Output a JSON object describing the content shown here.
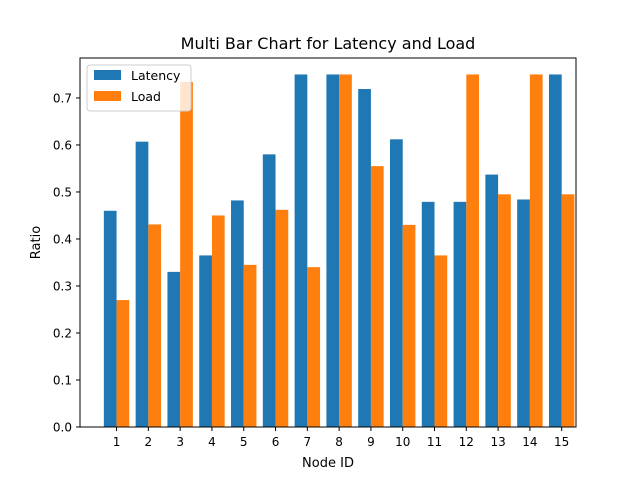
{
  "chart_data": {
    "type": "bar",
    "title": "Multi Bar Chart for Latency and Load",
    "xlabel": "Node ID",
    "ylabel": "Ratio",
    "categories": [
      "1",
      "2",
      "3",
      "4",
      "5",
      "6",
      "7",
      "8",
      "9",
      "10",
      "11",
      "12",
      "13",
      "14",
      "15"
    ],
    "series": [
      {
        "name": "Latency",
        "color": "#1f77b4",
        "values": [
          0.46,
          0.607,
          0.33,
          0.365,
          0.482,
          0.58,
          0.75,
          0.75,
          0.719,
          0.612,
          0.479,
          0.479,
          0.537,
          0.484,
          0.75
        ]
      },
      {
        "name": "Load",
        "color": "#ff7f0e",
        "values": [
          0.27,
          0.431,
          0.734,
          0.45,
          0.345,
          0.462,
          0.34,
          0.75,
          0.555,
          0.43,
          0.365,
          0.75,
          0.495,
          0.75,
          0.495
        ]
      }
    ],
    "ylim": [
      0,
      0.785
    ],
    "yticks": [
      "0.0",
      "0.1",
      "0.2",
      "0.3",
      "0.4",
      "0.5",
      "0.6",
      "0.7"
    ],
    "grid": false,
    "legend_position": "top-left"
  }
}
